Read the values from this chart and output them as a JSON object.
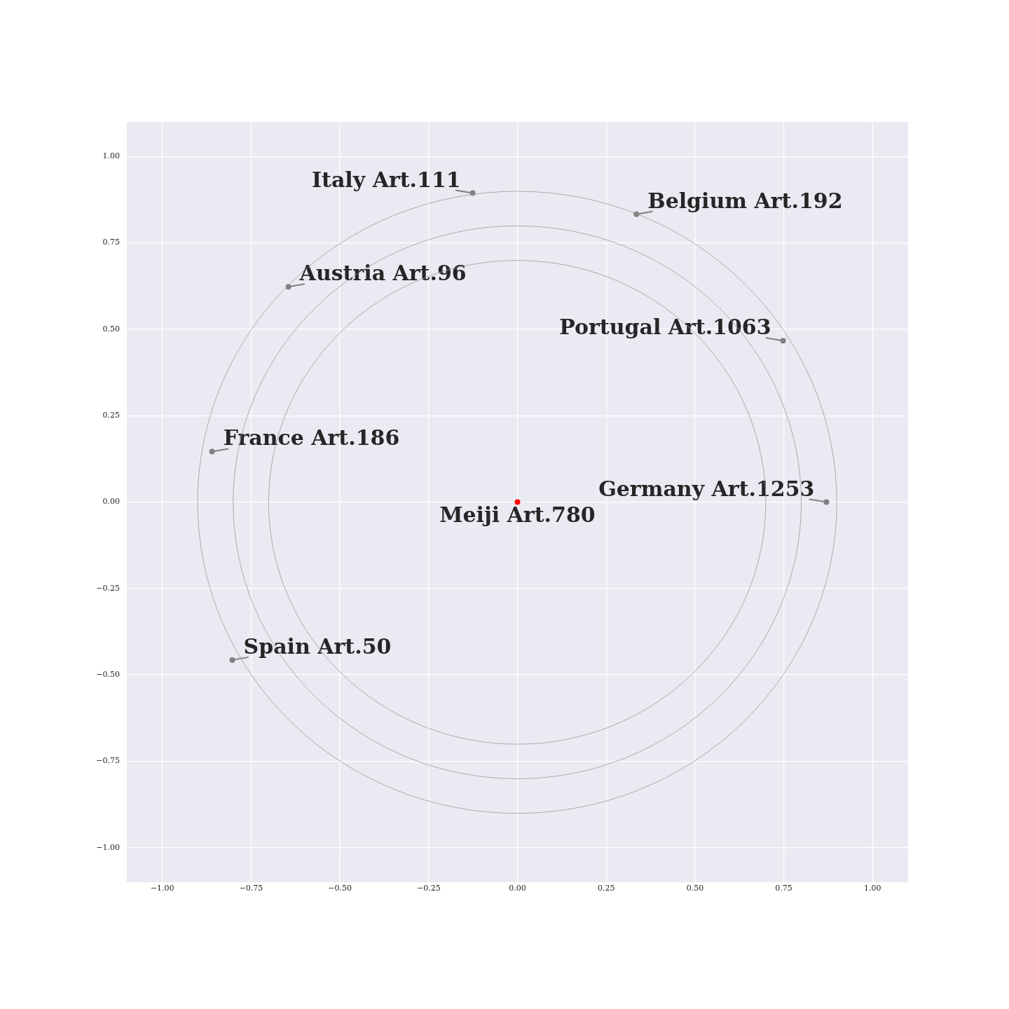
{
  "chart_data": {
    "type": "scatter",
    "xlim": [
      -1.1,
      1.1
    ],
    "ylim": [
      -1.1,
      1.1
    ],
    "xticks": [
      {
        "value": -1,
        "label": "−1.00"
      },
      {
        "value": -0.75,
        "label": "−0.75"
      },
      {
        "value": -0.5,
        "label": "−0.50"
      },
      {
        "value": -0.25,
        "label": "−0.25"
      },
      {
        "value": 0,
        "label": "0.00"
      },
      {
        "value": 0.25,
        "label": "0.25"
      },
      {
        "value": 0.5,
        "label": "0.50"
      },
      {
        "value": 0.75,
        "label": "0.75"
      },
      {
        "value": 1,
        "label": "1.00"
      }
    ],
    "yticks": [
      {
        "value": -1,
        "label": "−1.00"
      },
      {
        "value": -0.75,
        "label": "−0.75"
      },
      {
        "value": -0.5,
        "label": "−0.50"
      },
      {
        "value": -0.25,
        "label": "−0.25"
      },
      {
        "value": 0,
        "label": "0.00"
      },
      {
        "value": 0.25,
        "label": "0.25"
      },
      {
        "value": 0.5,
        "label": "0.50"
      },
      {
        "value": 0.75,
        "label": "0.75"
      },
      {
        "value": 1,
        "label": "1.00"
      }
    ],
    "grid": true,
    "series": [
      {
        "type": "scatter",
        "marker": "circle",
        "color": "#808080",
        "x": [
          -0.126,
          0.335,
          -0.645,
          0.748,
          -0.86,
          0.87,
          -0.803
        ],
        "values": [
          0.894,
          0.833,
          0.623,
          0.467,
          0.146,
          0,
          -0.457
        ]
      },
      {
        "type": "scatter",
        "marker": "circle",
        "color": "#ff0000",
        "x": [
          0
        ],
        "values": [
          0
        ]
      }
    ],
    "annotations": [
      {
        "text": "Italy Art.111",
        "x": -0.126,
        "y": 0.894
      },
      {
        "text": "Belgium Art.192",
        "x": 0.335,
        "y": 0.833
      },
      {
        "text": "Austria Art.96",
        "x": -0.645,
        "y": 0.623
      },
      {
        "text": "Portugal Art.1063",
        "x": 0.748,
        "y": 0.467
      },
      {
        "text": "France Art.186",
        "x": -0.86,
        "y": 0.146
      },
      {
        "text": "Germany Art.1253",
        "x": 0.87,
        "y": 0
      },
      {
        "text": "Spain Art.50",
        "x": -0.803,
        "y": -0.457
      },
      {
        "text": "Meiji Art.780",
        "x": 0,
        "y": 0
      }
    ]
  }
}
